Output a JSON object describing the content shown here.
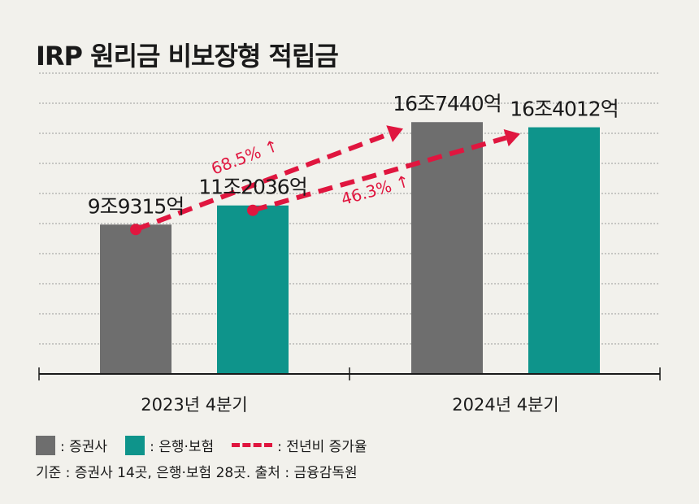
{
  "title": "IRP 원리금 비보장형 적립금",
  "chart_data": {
    "type": "bar",
    "categories": [
      "2023년 4분기",
      "2024년 4분기"
    ],
    "series": [
      {
        "name": "증권사",
        "values": [
          99315,
          167440
        ],
        "labels": [
          "9조9315억",
          "16조7440억"
        ],
        "color": "#6e6e6e"
      },
      {
        "name": "은행·보험",
        "values": [
          112036,
          164012
        ],
        "labels": [
          "11조2036억",
          "16조4012억"
        ],
        "color": "#0e948b"
      }
    ],
    "growth": [
      {
        "series": "증권사",
        "label": "68.5% ↑"
      },
      {
        "series": "은행·보험",
        "label": "46.3% ↑"
      }
    ],
    "growth_color": "#e0163f",
    "ylim": [
      0,
      200000
    ],
    "grid": true
  },
  "legend": {
    "securities": ": 증권사",
    "bank": ": 은행·보험",
    "growth": ": 전년비 증가율"
  },
  "source": "기준 : 증권사 14곳, 은행·보험 28곳. 출처 : 금융감독원"
}
